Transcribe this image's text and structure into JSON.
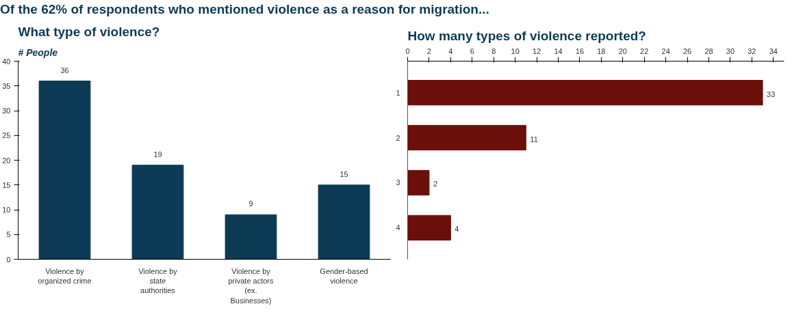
{
  "chart_data": [
    {
      "type": "bar",
      "title": "What type of violence?",
      "ylabel": "# People",
      "annotations": [
        "Of the 62% of respondents who mentioned violence as a reason for migration..."
      ],
      "categories": [
        "Violence by organized crime",
        "Violence by state authorities",
        "Violence by private actors (ex. Businesses)",
        "Gender-based violence"
      ],
      "values": [
        36,
        19,
        9,
        15
      ],
      "color": "#0d3a55",
      "ylim": [
        0,
        40
      ],
      "yticks": [
        0,
        5,
        10,
        15,
        20,
        25,
        30,
        35,
        40
      ],
      "grid": false,
      "data_labels": true
    },
    {
      "type": "bar",
      "orientation": "horizontal",
      "title": "How many types of violence reported?",
      "categories": [
        "1",
        "2",
        "3",
        "4"
      ],
      "values": [
        33,
        11,
        2,
        4
      ],
      "color": "#6b0f0a",
      "xlim": [
        0,
        35
      ],
      "xticks": [
        0,
        2,
        4,
        6,
        8,
        10,
        12,
        14,
        16,
        18,
        20,
        22,
        24,
        26,
        28,
        30,
        32,
        34
      ],
      "grid": false,
      "data_labels": true
    }
  ]
}
